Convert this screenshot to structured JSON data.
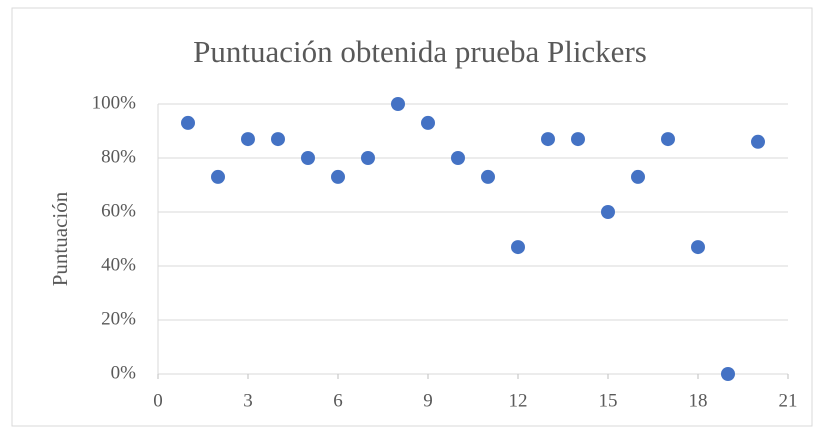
{
  "chart_data": {
    "type": "scatter",
    "title": "Puntuación obtenida prueba Plickers",
    "y_label": "Puntuación",
    "x": [
      1,
      2,
      3,
      4,
      5,
      6,
      7,
      8,
      9,
      10,
      11,
      12,
      13,
      14,
      15,
      16,
      17,
      18,
      19,
      20
    ],
    "values": [
      93,
      73,
      87,
      87,
      80,
      73,
      80,
      100,
      93,
      80,
      73,
      47,
      87,
      87,
      60,
      73,
      87,
      47,
      0,
      86
    ],
    "color": "#4472c4",
    "xlim": [
      0,
      21
    ],
    "xticks": [
      0,
      3,
      6,
      9,
      12,
      15,
      18,
      21
    ],
    "ylim": [
      0,
      100
    ],
    "yticks": [
      {
        "value": 0,
        "label": "0%"
      },
      {
        "value": 20,
        "label": "20%"
      },
      {
        "value": 40,
        "label": "40%"
      },
      {
        "value": 60,
        "label": "60%"
      },
      {
        "value": 80,
        "label": "80%"
      },
      {
        "value": 100,
        "label": "100%"
      }
    ],
    "grid": true
  }
}
